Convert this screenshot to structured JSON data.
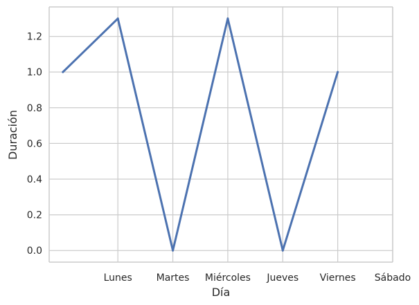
{
  "chart_data": {
    "type": "line",
    "x": [
      0,
      1,
      2,
      3,
      4,
      5,
      6
    ],
    "values": [
      1.0,
      1.3,
      0.0,
      1.3,
      0.0,
      1.0,
      null
    ],
    "xticks": [
      {
        "x": 1,
        "label": "Lunes"
      },
      {
        "x": 2,
        "label": "Martes"
      },
      {
        "x": 3,
        "label": "Miércoles"
      },
      {
        "x": 4,
        "label": "Jueves"
      },
      {
        "x": 5,
        "label": "Viernes"
      },
      {
        "x": 6,
        "label": "Sábado"
      }
    ],
    "yticks": [
      0.0,
      0.2,
      0.4,
      0.6,
      0.8,
      1.0,
      1.2
    ],
    "ytick_labels": [
      "0.0",
      "0.2",
      "0.4",
      "0.6",
      "0.8",
      "1.0",
      "1.2"
    ],
    "xlim": [
      -0.25,
      6.0
    ],
    "ylim": [
      -0.065,
      1.365
    ],
    "xlabel": "Día",
    "ylabel": "Duración",
    "grid": true,
    "line_color": "#4c72b0",
    "grid_color": "#cccccc"
  }
}
